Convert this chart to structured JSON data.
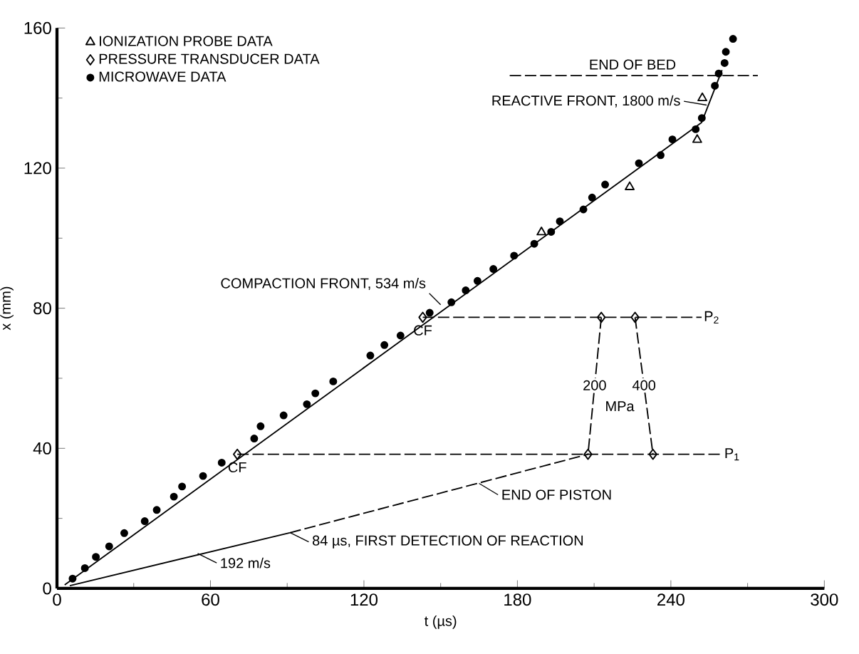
{
  "chart_data": {
    "type": "scatter",
    "xlabel": "t (µs)",
    "ylabel": "x (mm)",
    "xlim": [
      0,
      300
    ],
    "ylim": [
      0,
      160
    ],
    "xticks": [
      0,
      60,
      120,
      180,
      240,
      300
    ],
    "yticks": [
      0,
      40,
      80,
      120,
      160
    ],
    "legend": "top left",
    "series": [
      {
        "name": "IONIZATION PROBE DATA",
        "marker": "triangle",
        "color": "#000000",
        "x": [
          189.4,
          223.9,
          250.3,
          252.3
        ],
        "values": [
          101.7,
          114.6,
          128.1,
          140
        ]
      },
      {
        "name": "PRESSURE TRANSDUCER DATA",
        "marker": "diamond",
        "color": "#000000",
        "x": [
          70.5,
          143,
          212.8,
          226,
          207.6,
          233
        ],
        "values": [
          38.3,
          77.4,
          77.4,
          77.4,
          38.3,
          38.3
        ]
      },
      {
        "name": "MICROWAVE DATA",
        "marker": "circle",
        "color": "#000000",
        "x": [
          6.1,
          10.9,
          15.2,
          20.4,
          26.3,
          34.3,
          39,
          45.7,
          48.9,
          57.1,
          64.4,
          77.1,
          79.6,
          88.6,
          97.7,
          101,
          108,
          122.5,
          128,
          134.3,
          145.7,
          154.2,
          159.8,
          164.4,
          170.6,
          178.7,
          186.6,
          193.2,
          196.6,
          205.8,
          209.2,
          214.3,
          227.5,
          236,
          240.6,
          249.7,
          252.1,
          257.2,
          258.7,
          261,
          261.5,
          264.3
        ],
        "values": [
          2.8,
          5.8,
          9,
          12,
          15.8,
          19.2,
          22.4,
          26.2,
          29.1,
          32.1,
          35.9,
          42.8,
          46.3,
          49.4,
          52.6,
          55.7,
          59.1,
          66.5,
          69.5,
          72.2,
          78.7,
          81.7,
          85.1,
          87.8,
          91.2,
          95,
          98.4,
          101.8,
          104.8,
          108.2,
          111.6,
          115.3,
          121.4,
          123.7,
          128.2,
          131.1,
          134.3,
          143.5,
          147,
          150,
          153.2,
          156.9
        ]
      },
      {
        "type": "line",
        "marker": "none",
        "line_style": "solid",
        "color": "#000000",
        "x": [
          3,
          252,
          260
        ],
        "values": [
          1,
          133,
          148
        ]
      },
      {
        "name": "P$_{2}$",
        "type": "line",
        "marker": "none",
        "line_style": "dashed",
        "color": "#000000",
        "x": [
          143,
          252
        ],
        "values": [
          77.4,
          77.4
        ]
      },
      {
        "name": "P$_{1}$",
        "type": "line",
        "marker": "none",
        "line_style": "dashed",
        "color": "#000000",
        "x": [
          70.5,
          260
        ],
        "values": [
          38.3,
          38.3
        ]
      },
      {
        "type": "line",
        "marker": "none",
        "line_style": "dashed",
        "color": "#000000",
        "x": [
          212.8,
          207.6
        ],
        "values": [
          77.4,
          38.3
        ]
      },
      {
        "type": "line",
        "marker": "none",
        "line_style": "dashed",
        "color": "#000000",
        "x": [
          226,
          233
        ],
        "values": [
          77.4,
          38.3
        ]
      },
      {
        "type": "line",
        "marker": "none",
        "line_style": "solid",
        "color": "#000000",
        "x": [
          5,
          91
        ],
        "values": [
          0.8,
          15.9
        ]
      },
      {
        "type": "line",
        "marker": "none",
        "line_style": "dashed",
        "color": "#000000",
        "x": [
          91,
          207.6
        ],
        "values": [
          15.9,
          38.3
        ]
      },
      {
        "type": "line",
        "marker": "none",
        "line_style": "dashed",
        "color": "#000000",
        "x": [
          177,
          274
        ],
        "values": [
          146.4,
          146.4
        ]
      }
    ],
    "annotations": [
      {
        "text": "COMPACTION FRONT, 534 m/s",
        "x": 150,
        "y": 81
      },
      {
        "text": "REACTIVE FRONT, 1800 m/s",
        "x": 254,
        "y": 138
      },
      {
        "text": "END OF BED",
        "x": 225,
        "y": 146.4
      },
      {
        "text": "CF",
        "x": 70.5,
        "y": 38.3
      },
      {
        "text": "CF",
        "x": 143,
        "y": 77.4
      },
      {
        "text": "200",
        "x": 210.2,
        "y": 58
      },
      {
        "text": "400",
        "x": 229.5,
        "y": 58
      },
      {
        "text": "MPa",
        "x": 220,
        "y": 52
      },
      {
        "text": "END OF PISTON",
        "x": 165,
        "y": 30
      },
      {
        "text": "84 µs, FIRST DETECTION OF REACTION",
        "x": 91,
        "y": 16
      },
      {
        "text": "192 m/s",
        "x": 55,
        "y": 10
      }
    ]
  }
}
